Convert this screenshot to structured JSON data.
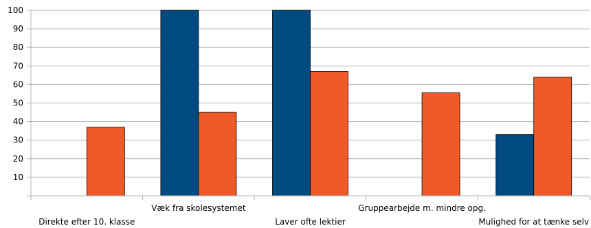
{
  "chart_data": {
    "type": "bar",
    "title": "",
    "xlabel": "",
    "ylabel": "",
    "ylim": [
      0,
      100
    ],
    "yticks": [
      10,
      20,
      30,
      40,
      50,
      60,
      70,
      80,
      90,
      100
    ],
    "grid": true,
    "legend": "none",
    "categories": [
      "Direkte efter 10. klasse",
      "Væk fra skolesystemet",
      "Laver ofte lektier",
      "Gruppearbejde m. mindre opg.",
      "Mulighed for at tænke selv"
    ],
    "series": [
      {
        "values": [
          0,
          100,
          100,
          0,
          33
        ],
        "color": "#004a7f"
      },
      {
        "values": [
          37,
          45,
          67,
          55.5,
          64
        ],
        "color": "#f05a28"
      }
    ]
  }
}
